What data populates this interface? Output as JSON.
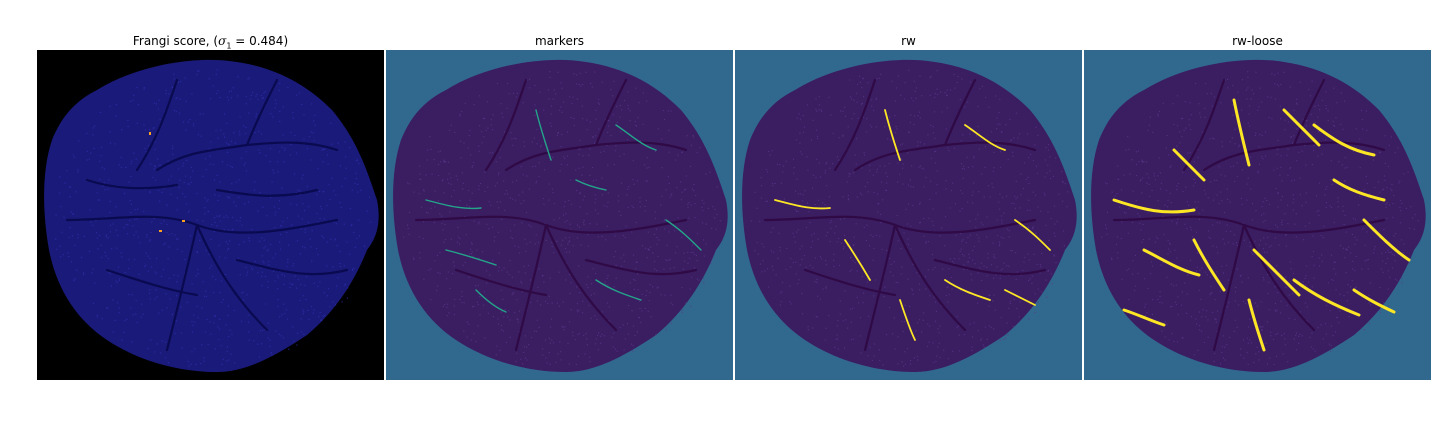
{
  "figure": {
    "panels": [
      {
        "title_main": "Frangi score, (",
        "title_math": "σ",
        "title_sub": "1",
        "title_rest": " = 0.484)",
        "background": "#000000",
        "blob_fill": "#1a1a7a",
        "vein_color": "#0a0a50",
        "highlight_color": "#ffa020"
      },
      {
        "title": "markers",
        "background": "#31688e",
        "blob_fill": "#3b1d62",
        "vein_color": "#2f0a45",
        "highlight_color": "#24a58a"
      },
      {
        "title": "rw",
        "background": "#31688e",
        "blob_fill": "#3b1d62",
        "vein_color": "#2f0a45",
        "highlight_color": "#fde725"
      },
      {
        "title": "rw-loose",
        "background": "#31688e",
        "blob_fill": "#3b1d62",
        "vein_color": "#2f0a45",
        "highlight_color": "#fde725"
      }
    ]
  }
}
